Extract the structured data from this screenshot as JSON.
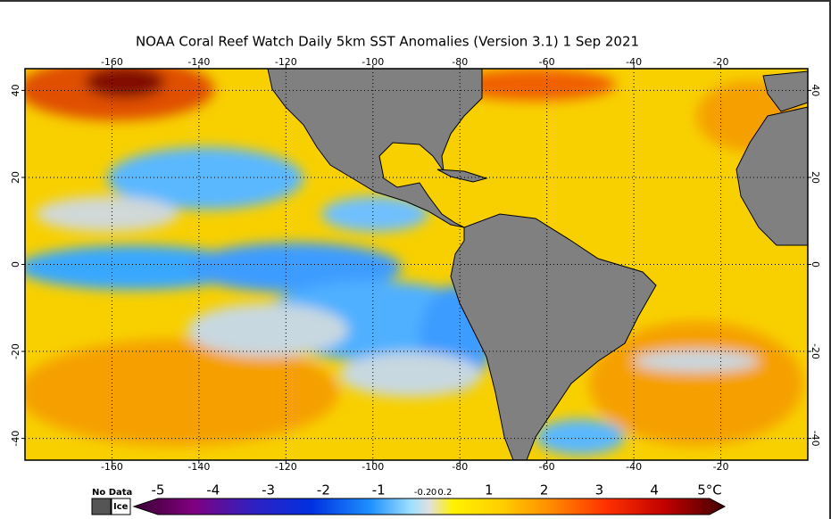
{
  "title": "NOAA Coral Reef Watch Daily 5km SST Anomalies (Version 3.1)   1 Sep 2021",
  "map": {
    "lonlim": [
      -180,
      0
    ],
    "latlim": [
      -45,
      45
    ],
    "lon_ticks": [
      -160,
      -140,
      -120,
      -100,
      -80,
      -60,
      -40,
      -20
    ],
    "lat_ticks": [
      40,
      20,
      0,
      -20,
      -40
    ],
    "grid": true
  },
  "colorbar": {
    "lim": [
      -5,
      5
    ],
    "ticks": [
      -5,
      -4,
      -3,
      -2,
      -1,
      -0.2,
      0,
      0.2,
      1,
      2,
      3,
      4,
      {
        "value": 5,
        "label": "5°C"
      }
    ],
    "no_data": "No Data",
    "ice": "Ice"
  }
}
